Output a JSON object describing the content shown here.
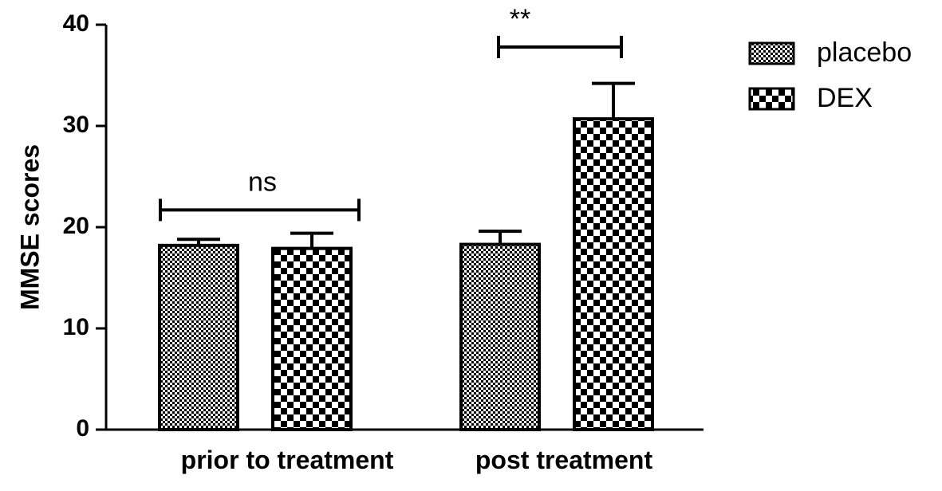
{
  "chart_data": {
    "type": "bar",
    "title": "",
    "xlabel": "",
    "ylabel": "MMSE scores",
    "ylim": [
      0,
      40
    ],
    "yticks": [
      0,
      10,
      20,
      30,
      40
    ],
    "grid": false,
    "legend_placement": "top-right",
    "categories": [
      "prior to treatment",
      "post treatment"
    ],
    "series": [
      {
        "name": "placebo",
        "pattern": "fine-checker",
        "values": [
          18.2,
          18.3
        ],
        "errors": [
          0.6,
          1.3
        ]
      },
      {
        "name": "DEX",
        "pattern": "coarse-checker",
        "values": [
          17.9,
          30.7
        ],
        "errors": [
          1.5,
          3.5
        ]
      }
    ],
    "annotations": [
      {
        "text": "ns",
        "category": "prior to treatment",
        "y": 21.7
      },
      {
        "text": "**",
        "category": "post treatment",
        "y": 37.8
      }
    ],
    "colors": {
      "fill_dark": "#000000",
      "fill_light": "#ffffff"
    }
  }
}
